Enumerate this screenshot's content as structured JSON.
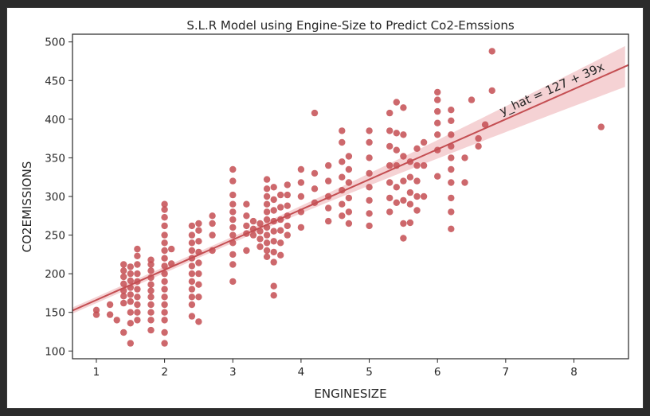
{
  "chart_data": {
    "type": "scatter",
    "title": "S.L.R Model using Engine-Size to Predict Co2-Emssions",
    "xlabel": "ENGINESIZE",
    "ylabel": "CO2EMISSIONS",
    "xlim": [
      0.65,
      8.8
    ],
    "ylim": [
      90,
      510
    ],
    "xticks": [
      "1",
      "2",
      "3",
      "4",
      "5",
      "6",
      "7",
      "8"
    ],
    "yticks": [
      "100",
      "150",
      "200",
      "250",
      "300",
      "350",
      "400",
      "450",
      "500"
    ],
    "grid": false,
    "annotation": "y_hat = 127 + 39x",
    "regression": {
      "intercept": 127,
      "slope": 39
    },
    "colors": {
      "points": "#c44e52",
      "line": "#c44e52",
      "band": "#f2c7c9"
    },
    "series": [
      {
        "points": [
          [
            1.0,
            147
          ],
          [
            1.0,
            153
          ],
          [
            1.2,
            160
          ],
          [
            1.2,
            147
          ],
          [
            1.3,
            140
          ],
          [
            1.4,
            124
          ],
          [
            1.4,
            162
          ],
          [
            1.4,
            171
          ],
          [
            1.4,
            178
          ],
          [
            1.4,
            187
          ],
          [
            1.4,
            196
          ],
          [
            1.4,
            204
          ],
          [
            1.4,
            212
          ],
          [
            1.5,
            110
          ],
          [
            1.5,
            136
          ],
          [
            1.5,
            150
          ],
          [
            1.5,
            164
          ],
          [
            1.5,
            173
          ],
          [
            1.5,
            182
          ],
          [
            1.5,
            191
          ],
          [
            1.5,
            200
          ],
          [
            1.5,
            209
          ],
          [
            1.6,
            140
          ],
          [
            1.6,
            150
          ],
          [
            1.6,
            160
          ],
          [
            1.6,
            170
          ],
          [
            1.6,
            180
          ],
          [
            1.6,
            190
          ],
          [
            1.6,
            200
          ],
          [
            1.6,
            212
          ],
          [
            1.6,
            223
          ],
          [
            1.6,
            232
          ],
          [
            1.8,
            127
          ],
          [
            1.8,
            140
          ],
          [
            1.8,
            150
          ],
          [
            1.8,
            160
          ],
          [
            1.8,
            170
          ],
          [
            1.8,
            178
          ],
          [
            1.8,
            186
          ],
          [
            1.8,
            195
          ],
          [
            1.8,
            204
          ],
          [
            1.8,
            212
          ],
          [
            1.8,
            218
          ],
          [
            2.0,
            110
          ],
          [
            2.0,
            124
          ],
          [
            2.0,
            140
          ],
          [
            2.0,
            150
          ],
          [
            2.0,
            160
          ],
          [
            2.0,
            170
          ],
          [
            2.0,
            180
          ],
          [
            2.0,
            190
          ],
          [
            2.0,
            200
          ],
          [
            2.0,
            210
          ],
          [
            2.0,
            220
          ],
          [
            2.0,
            230
          ],
          [
            2.0,
            240
          ],
          [
            2.0,
            250
          ],
          [
            2.0,
            262
          ],
          [
            2.0,
            273
          ],
          [
            2.0,
            283
          ],
          [
            2.0,
            290
          ],
          [
            2.1,
            213
          ],
          [
            2.1,
            232
          ],
          [
            2.4,
            145
          ],
          [
            2.4,
            160
          ],
          [
            2.4,
            170
          ],
          [
            2.4,
            180
          ],
          [
            2.4,
            190
          ],
          [
            2.4,
            200
          ],
          [
            2.4,
            210
          ],
          [
            2.4,
            220
          ],
          [
            2.4,
            230
          ],
          [
            2.4,
            240
          ],
          [
            2.4,
            250
          ],
          [
            2.4,
            262
          ],
          [
            2.5,
            138
          ],
          [
            2.5,
            170
          ],
          [
            2.5,
            186
          ],
          [
            2.5,
            200
          ],
          [
            2.5,
            214
          ],
          [
            2.5,
            228
          ],
          [
            2.5,
            242
          ],
          [
            2.5,
            256
          ],
          [
            2.5,
            265
          ],
          [
            2.7,
            230
          ],
          [
            2.7,
            250
          ],
          [
            2.7,
            265
          ],
          [
            2.7,
            275
          ],
          [
            3.0,
            190
          ],
          [
            3.0,
            212
          ],
          [
            3.0,
            225
          ],
          [
            3.0,
            240
          ],
          [
            3.0,
            250
          ],
          [
            3.0,
            260
          ],
          [
            3.0,
            270
          ],
          [
            3.0,
            280
          ],
          [
            3.0,
            290
          ],
          [
            3.0,
            302
          ],
          [
            3.0,
            320
          ],
          [
            3.0,
            335
          ],
          [
            3.2,
            230
          ],
          [
            3.2,
            252
          ],
          [
            3.2,
            262
          ],
          [
            3.2,
            275
          ],
          [
            3.2,
            290
          ],
          [
            3.3,
            250
          ],
          [
            3.3,
            258
          ],
          [
            3.3,
            268
          ],
          [
            3.4,
            235
          ],
          [
            3.4,
            245
          ],
          [
            3.4,
            255
          ],
          [
            3.4,
            265
          ],
          [
            3.5,
            222
          ],
          [
            3.5,
            230
          ],
          [
            3.5,
            240
          ],
          [
            3.5,
            250
          ],
          [
            3.5,
            260
          ],
          [
            3.5,
            270
          ],
          [
            3.5,
            280
          ],
          [
            3.5,
            290
          ],
          [
            3.5,
            300
          ],
          [
            3.5,
            310
          ],
          [
            3.5,
            322
          ],
          [
            3.6,
            172
          ],
          [
            3.6,
            184
          ],
          [
            3.6,
            215
          ],
          [
            3.6,
            228
          ],
          [
            3.6,
            242
          ],
          [
            3.6,
            255
          ],
          [
            3.6,
            268
          ],
          [
            3.6,
            282
          ],
          [
            3.6,
            296
          ],
          [
            3.6,
            312
          ],
          [
            3.7,
            224
          ],
          [
            3.7,
            240
          ],
          [
            3.7,
            256
          ],
          [
            3.7,
            270
          ],
          [
            3.7,
            286
          ],
          [
            3.7,
            302
          ],
          [
            3.8,
            250
          ],
          [
            3.8,
            262
          ],
          [
            3.8,
            275
          ],
          [
            3.8,
            288
          ],
          [
            3.8,
            302
          ],
          [
            3.8,
            315
          ],
          [
            4.0,
            260
          ],
          [
            4.0,
            280
          ],
          [
            4.0,
            300
          ],
          [
            4.0,
            318
          ],
          [
            4.0,
            335
          ],
          [
            4.2,
            292
          ],
          [
            4.2,
            310
          ],
          [
            4.2,
            330
          ],
          [
            4.2,
            408
          ],
          [
            4.4,
            268
          ],
          [
            4.4,
            285
          ],
          [
            4.4,
            300
          ],
          [
            4.4,
            320
          ],
          [
            4.4,
            340
          ],
          [
            4.6,
            275
          ],
          [
            4.6,
            290
          ],
          [
            4.6,
            308
          ],
          [
            4.6,
            325
          ],
          [
            4.6,
            345
          ],
          [
            4.6,
            370
          ],
          [
            4.6,
            385
          ],
          [
            4.7,
            265
          ],
          [
            4.7,
            280
          ],
          [
            4.7,
            298
          ],
          [
            4.7,
            318
          ],
          [
            4.7,
            335
          ],
          [
            4.7,
            352
          ],
          [
            5.0,
            262
          ],
          [
            5.0,
            278
          ],
          [
            5.0,
            295
          ],
          [
            5.0,
            312
          ],
          [
            5.0,
            330
          ],
          [
            5.0,
            350
          ],
          [
            5.0,
            370
          ],
          [
            5.0,
            385
          ],
          [
            5.3,
            280
          ],
          [
            5.3,
            298
          ],
          [
            5.3,
            318
          ],
          [
            5.3,
            340
          ],
          [
            5.3,
            365
          ],
          [
            5.3,
            385
          ],
          [
            5.3,
            408
          ],
          [
            5.4,
            292
          ],
          [
            5.4,
            312
          ],
          [
            5.4,
            340
          ],
          [
            5.4,
            360
          ],
          [
            5.4,
            382
          ],
          [
            5.4,
            422
          ],
          [
            5.5,
            246
          ],
          [
            5.5,
            265
          ],
          [
            5.5,
            295
          ],
          [
            5.5,
            320
          ],
          [
            5.5,
            352
          ],
          [
            5.5,
            380
          ],
          [
            5.5,
            415
          ],
          [
            5.6,
            266
          ],
          [
            5.6,
            290
          ],
          [
            5.6,
            305
          ],
          [
            5.6,
            325
          ],
          [
            5.6,
            345
          ],
          [
            5.7,
            282
          ],
          [
            5.7,
            300
          ],
          [
            5.7,
            320
          ],
          [
            5.7,
            340
          ],
          [
            5.7,
            362
          ],
          [
            5.8,
            300
          ],
          [
            5.8,
            340
          ],
          [
            5.8,
            370
          ],
          [
            6.0,
            326
          ],
          [
            6.0,
            360
          ],
          [
            6.0,
            380
          ],
          [
            6.0,
            395
          ],
          [
            6.0,
            410
          ],
          [
            6.0,
            425
          ],
          [
            6.0,
            435
          ],
          [
            6.2,
            258
          ],
          [
            6.2,
            280
          ],
          [
            6.2,
            298
          ],
          [
            6.2,
            318
          ],
          [
            6.2,
            335
          ],
          [
            6.2,
            350
          ],
          [
            6.2,
            365
          ],
          [
            6.2,
            380
          ],
          [
            6.2,
            398
          ],
          [
            6.2,
            412
          ],
          [
            6.4,
            318
          ],
          [
            6.4,
            350
          ],
          [
            6.5,
            425
          ],
          [
            6.6,
            365
          ],
          [
            6.6,
            375
          ],
          [
            6.7,
            393
          ],
          [
            6.8,
            437
          ],
          [
            6.8,
            488
          ],
          [
            8.4,
            390
          ]
        ]
      }
    ]
  }
}
